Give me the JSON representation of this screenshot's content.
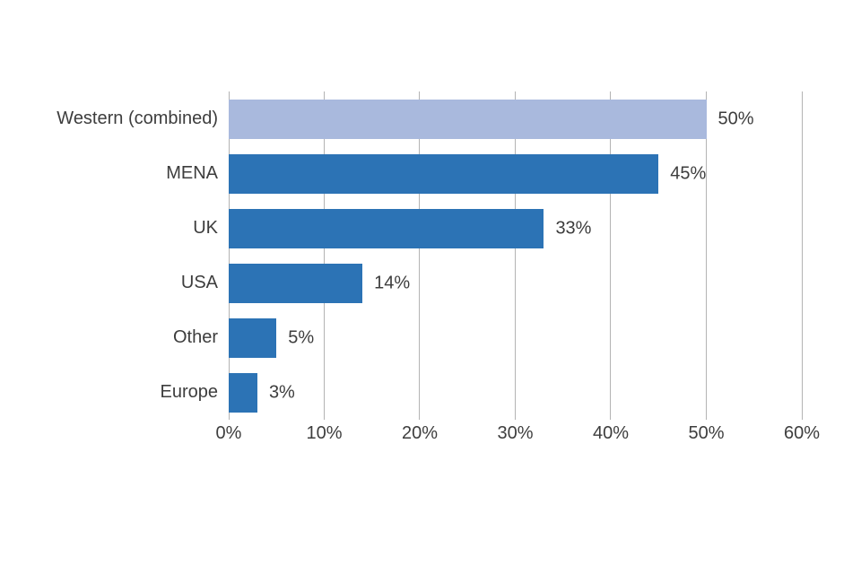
{
  "chart_data": {
    "type": "bar",
    "orientation": "horizontal",
    "title": "",
    "xlabel": "",
    "ylabel": "",
    "categories": [
      "Western (combined)",
      "MENA",
      "UK",
      "USA",
      "Other",
      "Europe"
    ],
    "values": [
      50,
      45,
      33,
      14,
      5,
      3
    ],
    "value_labels": [
      "50%",
      "45%",
      "33%",
      "14%",
      "5%",
      "3%"
    ],
    "xlim": [
      0,
      60
    ],
    "x_tick_values": [
      0,
      10,
      20,
      30,
      40,
      50,
      60
    ],
    "x_tick_labels": [
      "0%",
      "10%",
      "20%",
      "30%",
      "40%",
      "50%",
      "60%"
    ],
    "grid": "vertical",
    "legend": "none",
    "colors": {
      "bar_default": "#2c73b5",
      "bar_highlight": "#a9b9dd",
      "highlight_index": 0,
      "gridline": "#b3b3b3",
      "text": "#3d3d3d",
      "background": "#ffffff"
    }
  }
}
